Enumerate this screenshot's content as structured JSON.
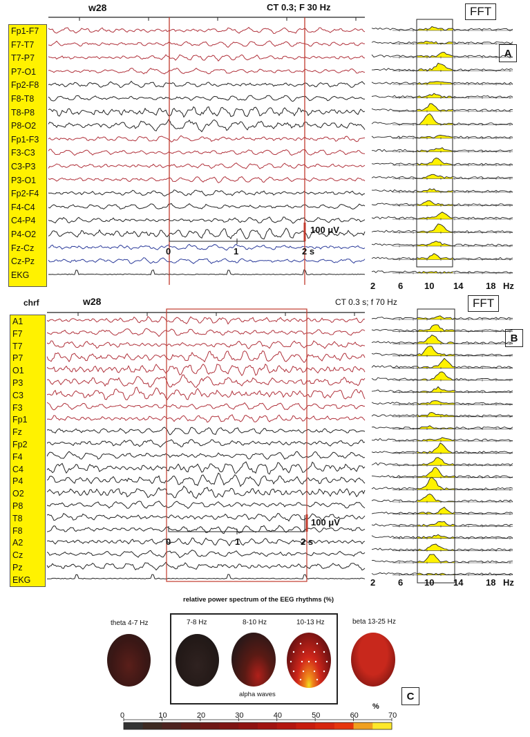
{
  "panelA": {
    "epoch_label": "w28",
    "filter_label": "CT 0.3; F 30 Hz",
    "channels": [
      "Fp1-F7",
      "F7-T7",
      "T7-P7",
      "P7-O1",
      "Fp2-F8",
      "F8-T8",
      "T8-P8",
      "P8-O2",
      "Fp1-F3",
      "F3-C3",
      "C3-P3",
      "P3-O1",
      "Fp2-F4",
      "F4-C4",
      "C4-P4",
      "P4-O2",
      "Fz-Cz",
      "Cz-Pz",
      "EKG"
    ],
    "scale_amp": "100 μV",
    "time_ticks": [
      "0",
      "1",
      "2 s"
    ],
    "fft_title": "FFT",
    "panel_letter": "A",
    "freq_ticks": [
      "2",
      "6",
      "10",
      "14",
      "18",
      "Hz"
    ]
  },
  "panelB": {
    "montage_label": "chrf",
    "epoch_label": "w28",
    "filter_label": "CT 0.3 s; f 70 Hz",
    "channels": [
      "A1",
      "F7",
      "T7",
      "P7",
      "O1",
      "P3",
      "C3",
      "F3",
      "Fp1",
      "Fz",
      "Fp2",
      "F4",
      "C4",
      "P4",
      "O2",
      "P8",
      "T8",
      "F8",
      "A2",
      "Cz",
      "Pz",
      "EKG"
    ],
    "scale_amp": "100 μV",
    "time_ticks": [
      "0",
      "1",
      "2 s"
    ],
    "fft_title": "FFT",
    "panel_letter": "B",
    "freq_ticks": [
      "2",
      "6",
      "10",
      "14",
      "18",
      "Hz"
    ]
  },
  "panelC": {
    "title": "relative power spectrum of the EEG rhythms",
    "title_unit": "(%)",
    "maps": [
      {
        "label": "theta 4-7 Hz",
        "color": "#4a1c18"
      },
      {
        "label": "7-8 Hz",
        "color": "#2e1a18"
      },
      {
        "label": "8-10 Hz",
        "color": "#3a1a16"
      },
      {
        "label": "10-13 Hz",
        "color": "#c2261a"
      },
      {
        "label": "beta 13-25 Hz",
        "color": "#c8281c"
      }
    ],
    "group_label": "alpha waves",
    "panel_letter": "C",
    "colorbar_unit": "%",
    "colorbar_ticks": [
      "0",
      "10",
      "20",
      "30",
      "40",
      "50",
      "60",
      "70"
    ],
    "colorbar_colors": [
      "#333333",
      "#3e2a22",
      "#4d2320",
      "#5e1c18",
      "#6e1715",
      "#7e1413",
      "#8e1211",
      "#a01310",
      "#b3160f",
      "#c71c0e",
      "#d6250d",
      "#e6350c",
      "#f0a020",
      "#fde82a"
    ],
    "accent_yellow": "#fff200",
    "trace_red": "#b0303a",
    "trace_blue": "#2a3a9a"
  }
}
